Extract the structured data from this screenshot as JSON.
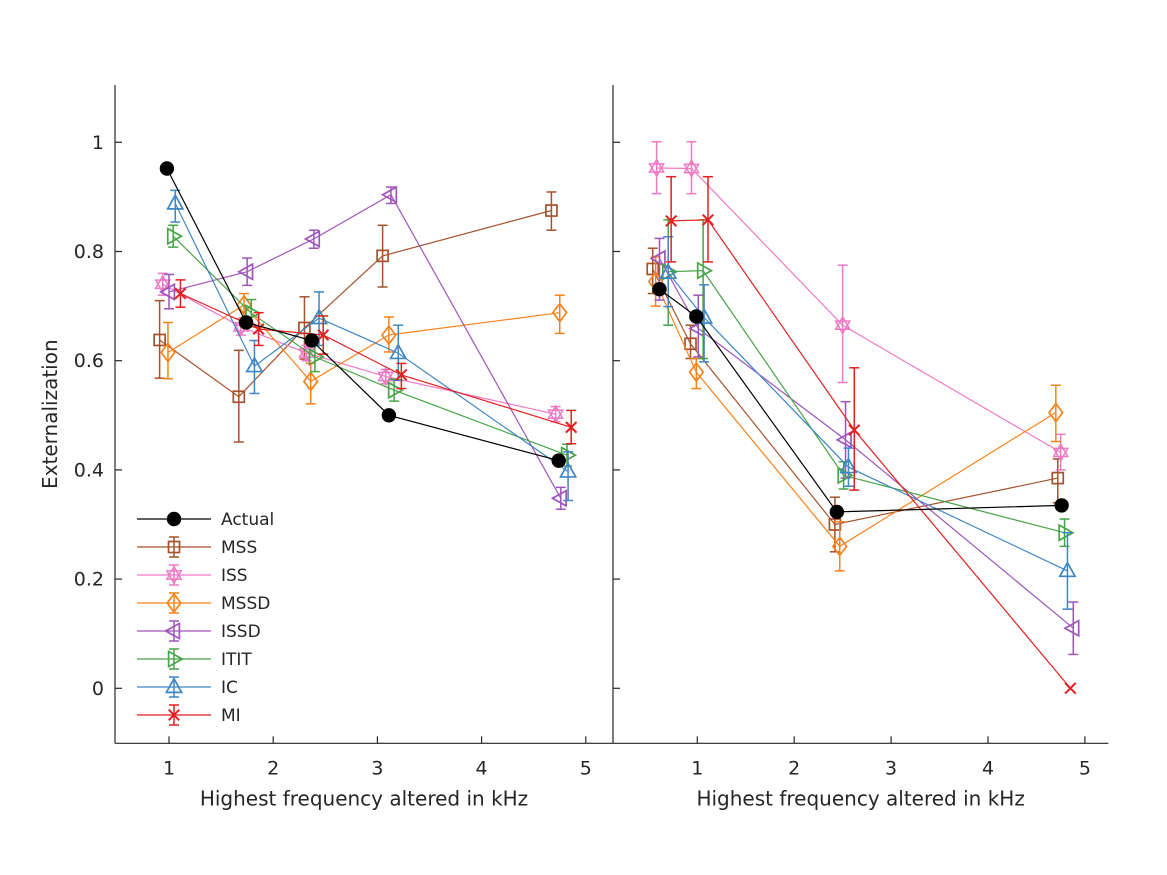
{
  "figure": {
    "ylabel": "Externalization",
    "background": "#ffffff",
    "axis_color": "#262626",
    "legend_entries": [
      "Actual",
      "MSS",
      "ISS",
      "MSSD",
      "ISSD",
      "ITIT",
      "IC",
      "MI"
    ]
  },
  "chart_data": [
    {
      "type": "line",
      "panel": "left",
      "xlabel": "Highest frequency altered in kHz",
      "ylabel": "Externalization",
      "xlim": [
        0.48,
        5.26
      ],
      "ylim": [
        -0.1,
        1.1
      ],
      "xticks": [
        1,
        2,
        3,
        4,
        5
      ],
      "xtick_labels": [
        "1",
        "2",
        "3",
        "4",
        "5"
      ],
      "yticks": [
        0,
        0.2,
        0.4,
        0.6,
        0.8,
        1
      ],
      "ytick_labels": [
        "0",
        "0.2",
        "0.4",
        "0.6",
        "0.8",
        "1"
      ],
      "show_ytick_labels": true,
      "grid": false,
      "legend_position": "lower-left-inside",
      "series": [
        {
          "name": "Actual",
          "color": "#000000",
          "marker": "circle-filled",
          "points": [
            {
              "x": 0.98,
              "y": 0.952
            },
            {
              "x": 1.74,
              "y": 0.67
            },
            {
              "x": 2.37,
              "y": 0.637
            },
            {
              "x": 3.11,
              "y": 0.5
            },
            {
              "x": 4.74,
              "y": 0.417
            }
          ]
        },
        {
          "name": "MSS",
          "color": "#a5522c",
          "marker": "square",
          "points": [
            {
              "x": 0.91,
              "y": 0.638,
              "lo": 0.568,
              "hi": 0.71
            },
            {
              "x": 1.67,
              "y": 0.534,
              "lo": 0.451,
              "hi": 0.619
            },
            {
              "x": 2.3,
              "y": 0.66,
              "lo": 0.603,
              "hi": 0.717
            },
            {
              "x": 3.05,
              "y": 0.792,
              "lo": 0.735,
              "hi": 0.848
            },
            {
              "x": 4.67,
              "y": 0.875,
              "lo": 0.839,
              "hi": 0.909
            }
          ]
        },
        {
          "name": "ISS",
          "color": "#ef7ac4",
          "marker": "hexagram",
          "points": [
            {
              "x": 0.94,
              "y": 0.74,
              "lo": 0.72,
              "hi": 0.76
            },
            {
              "x": 1.69,
              "y": 0.662,
              "lo": 0.647,
              "hi": 0.677
            },
            {
              "x": 2.32,
              "y": 0.614,
              "lo": 0.6,
              "hi": 0.628
            },
            {
              "x": 3.08,
              "y": 0.571,
              "lo": 0.558,
              "hi": 0.584
            },
            {
              "x": 4.71,
              "y": 0.502,
              "lo": 0.488,
              "hi": 0.516
            }
          ]
        },
        {
          "name": "MSSD",
          "color": "#f8821a",
          "marker": "diamond",
          "points": [
            {
              "x": 0.99,
              "y": 0.615,
              "lo": 0.567,
              "hi": 0.67
            },
            {
              "x": 1.72,
              "y": 0.702,
              "lo": 0.678,
              "hi": 0.723
            },
            {
              "x": 2.36,
              "y": 0.562,
              "lo": 0.521,
              "hi": 0.595
            },
            {
              "x": 3.11,
              "y": 0.647,
              "lo": 0.616,
              "hi": 0.68
            },
            {
              "x": 4.75,
              "y": 0.688,
              "lo": 0.65,
              "hi": 0.72
            }
          ]
        },
        {
          "name": "ISSD",
          "color": "#9f54ba",
          "marker": "triangle-left",
          "points": [
            {
              "x": 1.0,
              "y": 0.726,
              "lo": 0.695,
              "hi": 0.758
            },
            {
              "x": 1.75,
              "y": 0.763,
              "lo": 0.738,
              "hi": 0.788
            },
            {
              "x": 2.39,
              "y": 0.823,
              "lo": 0.806,
              "hi": 0.839
            },
            {
              "x": 3.13,
              "y": 0.904,
              "lo": 0.888,
              "hi": 0.918
            },
            {
              "x": 4.76,
              "y": 0.348,
              "lo": 0.328,
              "hi": 0.368
            }
          ]
        },
        {
          "name": "ITIT",
          "color": "#47a447",
          "marker": "triangle-right",
          "points": [
            {
              "x": 1.04,
              "y": 0.828,
              "lo": 0.808,
              "hi": 0.848
            },
            {
              "x": 1.79,
              "y": 0.687,
              "lo": 0.662,
              "hi": 0.712
            },
            {
              "x": 2.4,
              "y": 0.607,
              "lo": 0.58,
              "hi": 0.634
            },
            {
              "x": 3.16,
              "y": 0.546,
              "lo": 0.526,
              "hi": 0.566
            },
            {
              "x": 4.82,
              "y": 0.427,
              "lo": 0.407,
              "hi": 0.447
            }
          ]
        },
        {
          "name": "IC",
          "color": "#3f86c5",
          "marker": "triangle-up",
          "points": [
            {
              "x": 1.06,
              "y": 0.888,
              "lo": 0.854,
              "hi": 0.912
            },
            {
              "x": 1.82,
              "y": 0.59,
              "lo": 0.54,
              "hi": 0.637
            },
            {
              "x": 2.44,
              "y": 0.678,
              "lo": 0.628,
              "hi": 0.726
            },
            {
              "x": 3.2,
              "y": 0.614,
              "lo": 0.564,
              "hi": 0.665
            },
            {
              "x": 4.83,
              "y": 0.397,
              "lo": 0.344,
              "hi": 0.433
            }
          ]
        },
        {
          "name": "MI",
          "color": "#e41f1f",
          "marker": "x",
          "points": [
            {
              "x": 1.11,
              "y": 0.723,
              "lo": 0.698,
              "hi": 0.748
            },
            {
              "x": 1.86,
              "y": 0.658,
              "lo": 0.628,
              "hi": 0.688
            },
            {
              "x": 2.48,
              "y": 0.647,
              "lo": 0.612,
              "hi": 0.682
            },
            {
              "x": 3.23,
              "y": 0.574,
              "lo": 0.549,
              "hi": 0.595
            },
            {
              "x": 4.86,
              "y": 0.478,
              "lo": 0.448,
              "hi": 0.509
            }
          ]
        }
      ]
    },
    {
      "type": "line",
      "panel": "right",
      "xlabel": "Highest frequency altered in kHz",
      "xlim": [
        0.13,
        5.24
      ],
      "ylim": [
        -0.1,
        1.1
      ],
      "xticks": [
        1,
        2,
        3,
        4,
        5
      ],
      "xtick_labels": [
        "1",
        "2",
        "3",
        "4",
        "5"
      ],
      "yticks": [
        0,
        0.2,
        0.4,
        0.6,
        0.8,
        1
      ],
      "ytick_labels": [],
      "show_ytick_labels": false,
      "grid": false,
      "series": [
        {
          "name": "Actual",
          "color": "#000000",
          "marker": "circle-filled",
          "points": [
            {
              "x": 0.61,
              "y": 0.731
            },
            {
              "x": 0.99,
              "y": 0.681
            },
            {
              "x": 2.44,
              "y": 0.323
            },
            {
              "x": 4.76,
              "y": 0.335
            }
          ]
        },
        {
          "name": "MSS",
          "color": "#a5522c",
          "marker": "square",
          "points": [
            {
              "x": 0.54,
              "y": 0.768,
              "lo": 0.723,
              "hi": 0.806
            },
            {
              "x": 0.93,
              "y": 0.631,
              "lo": 0.604,
              "hi": 0.665
            },
            {
              "x": 2.42,
              "y": 0.3,
              "lo": 0.25,
              "hi": 0.35
            },
            {
              "x": 4.72,
              "y": 0.385,
              "lo": 0.34,
              "hi": 0.42
            }
          ]
        },
        {
          "name": "ISS",
          "color": "#ef7ac4",
          "marker": "hexagram",
          "points": [
            {
              "x": 0.58,
              "y": 0.953,
              "lo": 0.906,
              "hi": 1.001
            },
            {
              "x": 0.94,
              "y": 0.952,
              "lo": 0.906,
              "hi": 1.001
            },
            {
              "x": 2.5,
              "y": 0.665,
              "lo": 0.56,
              "hi": 0.775
            },
            {
              "x": 4.75,
              "y": 0.432,
              "lo": 0.4,
              "hi": 0.465
            }
          ]
        },
        {
          "name": "MSSD",
          "color": "#f8821a",
          "marker": "diamond",
          "points": [
            {
              "x": 0.57,
              "y": 0.745,
              "lo": 0.7,
              "hi": 0.79
            },
            {
              "x": 0.99,
              "y": 0.579,
              "lo": 0.549,
              "hi": 0.604
            },
            {
              "x": 2.47,
              "y": 0.26,
              "lo": 0.215,
              "hi": 0.305
            },
            {
              "x": 4.7,
              "y": 0.505,
              "lo": 0.452,
              "hi": 0.555
            }
          ]
        },
        {
          "name": "ISSD",
          "color": "#9f54ba",
          "marker": "triangle-left",
          "points": [
            {
              "x": 0.61,
              "y": 0.787,
              "lo": 0.711,
              "hi": 0.824
            },
            {
              "x": 1.01,
              "y": 0.659,
              "lo": 0.607,
              "hi": 0.72
            },
            {
              "x": 2.53,
              "y": 0.455,
              "lo": 0.385,
              "hi": 0.525
            },
            {
              "x": 4.88,
              "y": 0.11,
              "lo": 0.062,
              "hi": 0.158
            }
          ]
        },
        {
          "name": "ITIT",
          "color": "#47a447",
          "marker": "triangle-right",
          "points": [
            {
              "x": 0.7,
              "y": 0.763,
              "lo": 0.665,
              "hi": 0.858
            },
            {
              "x": 1.06,
              "y": 0.765,
              "lo": 0.604,
              "hi": 0.858
            },
            {
              "x": 2.51,
              "y": 0.39,
              "lo": 0.365,
              "hi": 0.415
            },
            {
              "x": 4.79,
              "y": 0.285,
              "lo": 0.26,
              "hi": 0.31
            }
          ]
        },
        {
          "name": "IC",
          "color": "#3f86c5",
          "marker": "triangle-up",
          "points": [
            {
              "x": 0.7,
              "y": 0.761,
              "lo": 0.699,
              "hi": 0.827
            },
            {
              "x": 1.07,
              "y": 0.679,
              "lo": 0.598,
              "hi": 0.739
            },
            {
              "x": 2.56,
              "y": 0.405,
              "lo": 0.37,
              "hi": 0.44
            },
            {
              "x": 4.82,
              "y": 0.215,
              "lo": 0.145,
              "hi": 0.285
            }
          ]
        },
        {
          "name": "MI",
          "color": "#e41f1f",
          "marker": "x",
          "points": [
            {
              "x": 0.73,
              "y": 0.856,
              "lo": 0.781,
              "hi": 0.937
            },
            {
              "x": 1.11,
              "y": 0.858,
              "lo": 0.781,
              "hi": 0.937
            },
            {
              "x": 2.62,
              "y": 0.473,
              "lo": 0.363,
              "hi": 0.587
            },
            {
              "x": 4.85,
              "y": 0.0
            }
          ]
        }
      ]
    }
  ]
}
